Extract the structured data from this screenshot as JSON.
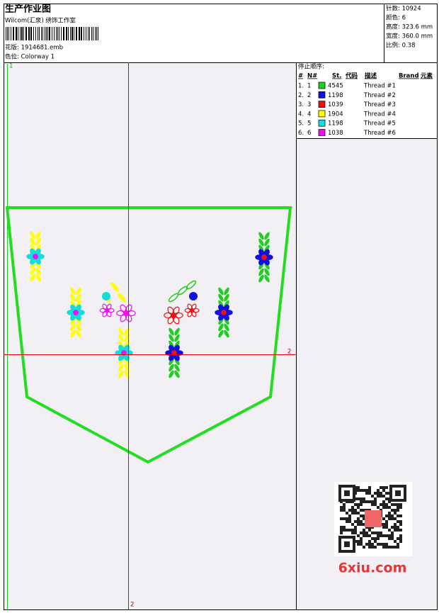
{
  "header": {
    "title": "生产作业图",
    "studio": "Wilcom(汇泉) 绣饰工作室",
    "design": "花版: 1914681.emb",
    "colorway": "色位: Colorway 1"
  },
  "stats": [
    "针数: 10924",
    "颜色: 6",
    "高度: 323.6 mm",
    "宽度: 360.0 mm",
    "比例: 0.38"
  ],
  "stop_sequence": {
    "title": "停止顺序:",
    "columns": [
      "#",
      "N#",
      "St.",
      "代码",
      "描述",
      "Brand",
      "元素"
    ],
    "rows": [
      {
        "num": "1.",
        "n": "1",
        "color": "#22cc22",
        "code": "4545",
        "desc": "Thread #1"
      },
      {
        "num": "2.",
        "n": "2",
        "color": "#1010dd",
        "code": "1198",
        "desc": "Thread #2"
      },
      {
        "num": "3.",
        "n": "3",
        "color": "#ee1111",
        "code": "1039",
        "desc": "Thread #3"
      },
      {
        "num": "4.",
        "n": "4",
        "color": "#ffff00",
        "code": "1904",
        "desc": "Thread #4"
      },
      {
        "num": "5.",
        "n": "5",
        "color": "#11dddd",
        "code": "1198",
        "desc": "Thread #5"
      },
      {
        "num": "6.",
        "n": "6",
        "color": "#ee11ee",
        "code": "1038",
        "desc": "Thread #6"
      }
    ]
  },
  "axis_labels": {
    "top_left": "1",
    "right": "2",
    "bottom": "2"
  },
  "watermark": "6xiu.com"
}
